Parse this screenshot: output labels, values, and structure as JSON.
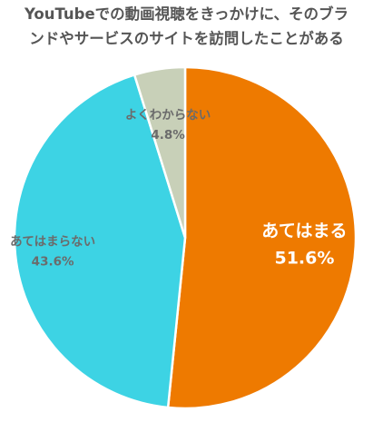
{
  "chart_data": {
    "type": "pie",
    "title_lines": [
      "YouTubeでの動画視聴をきっかけに、そのブラ",
      "ンドやサービスのサイトを訪問したことがある"
    ],
    "slices": [
      {
        "label": "あてはまる",
        "value": 51.6,
        "value_label": "51.6%",
        "color": "#EE7A00",
        "text_color": "#ffffff"
      },
      {
        "label": "あてはまらない",
        "value": 43.6,
        "value_label": "43.6%",
        "color": "#3DD3E4",
        "text_color": "#6b6b6b"
      },
      {
        "label": "よくわからない",
        "value": 4.8,
        "value_label": "4.8%",
        "color": "#C8D0B8",
        "text_color": "#6b6b6b"
      }
    ]
  }
}
